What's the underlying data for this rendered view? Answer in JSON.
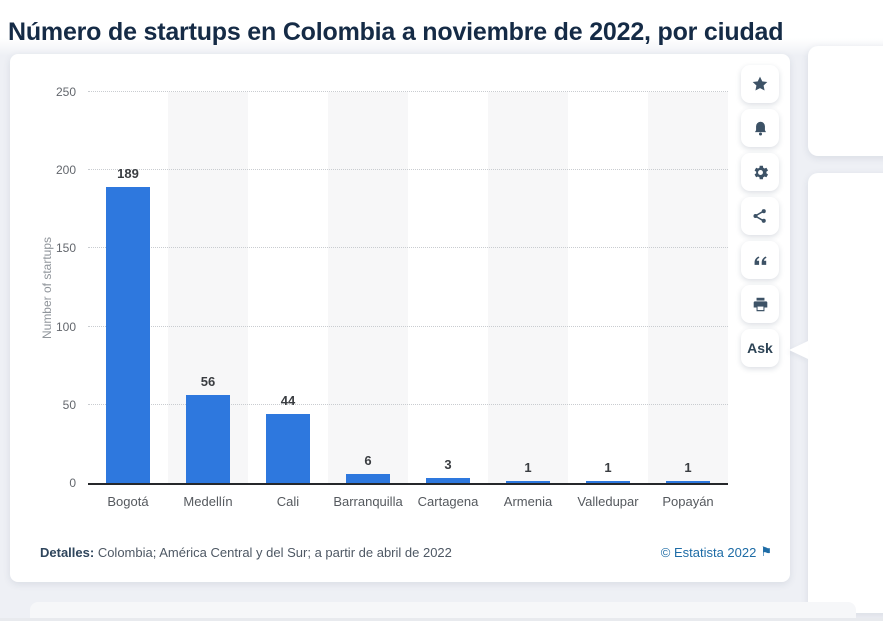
{
  "page": {
    "title": "Número de startups en Colombia a noviembre de 2022, por ciudad",
    "background_color": "#eef0f5",
    "title_color": "#152b46"
  },
  "chart_data": {
    "type": "bar",
    "categories": [
      "Bogotá",
      "Medellín",
      "Cali",
      "Barranquilla",
      "Cartagena",
      "Armenia",
      "Valledupar",
      "Popayán"
    ],
    "values": [
      189,
      56,
      44,
      6,
      3,
      1,
      1,
      1
    ],
    "title": "",
    "xlabel": "",
    "ylabel": "Number of startups",
    "ylim": [
      0,
      250
    ],
    "yticks": [
      0,
      50,
      100,
      150,
      200,
      250
    ],
    "grid": "horizontal-dotted",
    "legend": "none",
    "bar_color": "#2e78de",
    "band_alt_color": "#f7f7f8"
  },
  "toolbar": {
    "buttons": [
      {
        "name": "favorite",
        "icon": "star-icon"
      },
      {
        "name": "notifications",
        "icon": "bell-icon"
      },
      {
        "name": "settings",
        "icon": "gear-icon"
      },
      {
        "name": "share",
        "icon": "share-icon"
      },
      {
        "name": "cite",
        "icon": "quote-icon"
      },
      {
        "name": "print",
        "icon": "printer-icon"
      }
    ],
    "ask_label": "Ask"
  },
  "footer": {
    "details_label": "Detalles:",
    "details_text": " Colombia; América Central y del Sur; a partir de abril de 2022",
    "copyright": "© Estatista 2022",
    "flag_icon": "⚑"
  }
}
